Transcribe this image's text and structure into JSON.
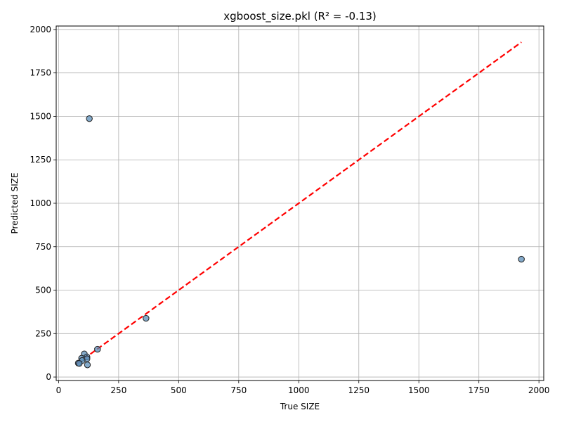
{
  "chart_data": {
    "type": "scatter",
    "title": "xgboost_size.pkl (R² = -0.13)",
    "xlabel": "True SIZE",
    "ylabel": "Predicted SIZE",
    "xlim": [
      -10,
      2020
    ],
    "ylim": [
      -20,
      2020
    ],
    "xticks": [
      0,
      250,
      500,
      750,
      1000,
      1250,
      1500,
      1750,
      2000
    ],
    "yticks": [
      0,
      250,
      500,
      750,
      1000,
      1250,
      1500,
      1750,
      2000
    ],
    "grid": true,
    "points": [
      {
        "x": 128,
        "y": 1487
      },
      {
        "x": 1927,
        "y": 678
      },
      {
        "x": 364,
        "y": 338
      },
      {
        "x": 162,
        "y": 160
      },
      {
        "x": 107,
        "y": 133
      },
      {
        "x": 118,
        "y": 116
      },
      {
        "x": 96,
        "y": 108
      },
      {
        "x": 118,
        "y": 105
      },
      {
        "x": 98,
        "y": 95
      },
      {
        "x": 82,
        "y": 80
      },
      {
        "x": 86,
        "y": 78
      },
      {
        "x": 120,
        "y": 70
      }
    ],
    "reference_line": {
      "x": [
        75,
        1927
      ],
      "y": [
        75,
        1927
      ],
      "style": "dashed",
      "color": "#ff0000"
    },
    "colors": {
      "marker_fill": "#5b8db8",
      "marker_edge": "#1f1f1f",
      "reference": "#ff0000",
      "grid": "#b0b0b0"
    }
  }
}
